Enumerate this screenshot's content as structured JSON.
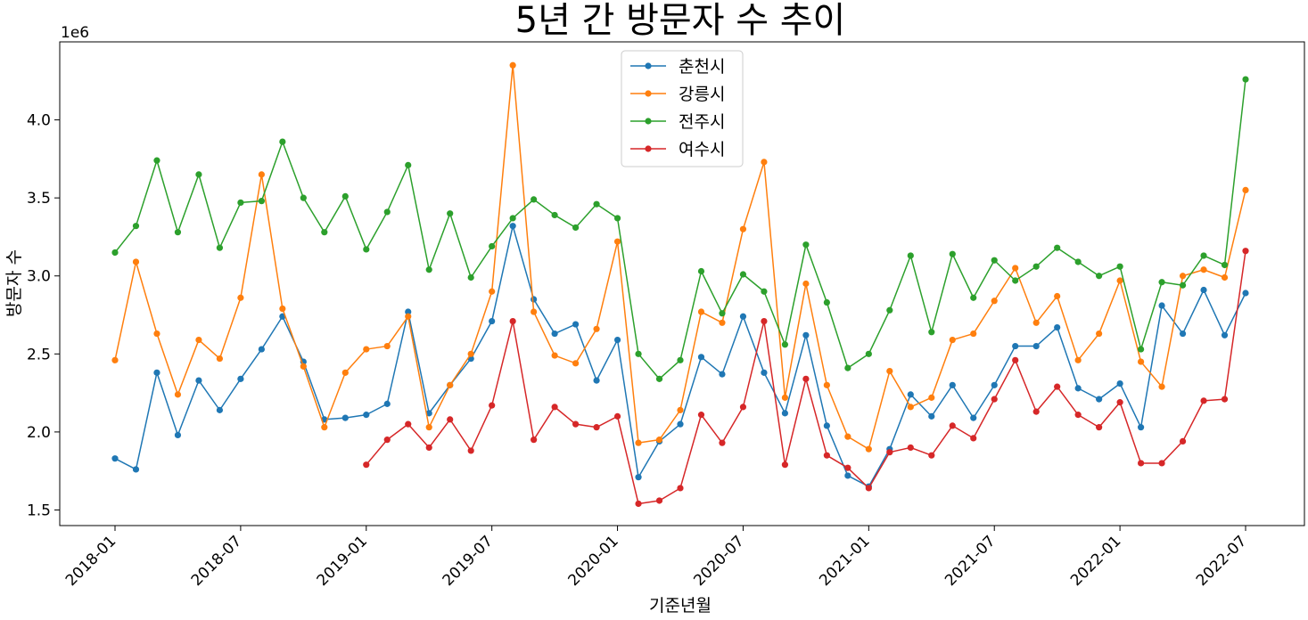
{
  "chart_data": {
    "type": "line",
    "title": "5년 간 방문자 수 추이",
    "xlabel": "기준년월",
    "ylabel": "방문자 수",
    "y_offset_text": "1e6",
    "x": [
      "2018-01",
      "2018-02",
      "2018-03",
      "2018-04",
      "2018-05",
      "2018-06",
      "2018-07",
      "2018-08",
      "2018-09",
      "2018-10",
      "2018-11",
      "2018-12",
      "2019-01",
      "2019-02",
      "2019-03",
      "2019-04",
      "2019-05",
      "2019-06",
      "2019-07",
      "2019-08",
      "2019-09",
      "2019-10",
      "2019-11",
      "2019-12",
      "2020-01",
      "2020-02",
      "2020-03",
      "2020-04",
      "2020-05",
      "2020-06",
      "2020-07",
      "2020-08",
      "2020-09",
      "2020-10",
      "2020-11",
      "2020-12",
      "2021-01",
      "2021-02",
      "2021-03",
      "2021-04",
      "2021-05",
      "2021-06",
      "2021-07",
      "2021-08",
      "2021-09",
      "2021-10",
      "2021-11",
      "2021-12",
      "2022-01",
      "2022-02",
      "2022-03",
      "2022-04",
      "2022-05",
      "2022-06",
      "2022-07"
    ],
    "x_ticks": [
      "2018-01",
      "2018-07",
      "2019-01",
      "2019-07",
      "2020-01",
      "2020-07",
      "2021-01",
      "2021-07",
      "2022-01",
      "2022-07"
    ],
    "y_ticks": [
      "1.5",
      "2.0",
      "2.5",
      "3.0",
      "3.5",
      "4.0"
    ],
    "y_tick_values": [
      1.5,
      2.0,
      2.5,
      3.0,
      3.5,
      4.0
    ],
    "ylim": [
      1.4,
      4.5
    ],
    "legend_position": "top-center",
    "grid": false,
    "series": [
      {
        "name": "춘천시",
        "color": "#1f77b4",
        "values": [
          1.83,
          1.76,
          2.38,
          1.98,
          2.33,
          2.14,
          2.34,
          2.53,
          2.74,
          2.45,
          2.08,
          2.09,
          2.11,
          2.18,
          2.77,
          2.12,
          2.3,
          2.47,
          2.71,
          3.32,
          2.85,
          2.63,
          2.69,
          2.33,
          2.59,
          1.71,
          1.94,
          2.05,
          2.48,
          2.37,
          2.74,
          2.38,
          2.12,
          2.62,
          2.04,
          1.72,
          1.65,
          1.89,
          2.24,
          2.1,
          2.3,
          2.09,
          2.3,
          2.55,
          2.55,
          2.67,
          2.28,
          2.21,
          2.31,
          2.03,
          2.81,
          2.63,
          2.91,
          2.62,
          2.89
        ]
      },
      {
        "name": "강릉시",
        "color": "#ff7f0e",
        "values": [
          2.46,
          3.09,
          2.63,
          2.24,
          2.59,
          2.47,
          2.86,
          3.65,
          2.79,
          2.42,
          2.03,
          2.38,
          2.53,
          2.55,
          2.74,
          2.03,
          2.3,
          2.5,
          2.9,
          4.35,
          2.77,
          2.49,
          2.44,
          2.66,
          3.22,
          1.93,
          1.95,
          2.14,
          2.77,
          2.7,
          3.3,
          3.73,
          2.22,
          2.95,
          2.3,
          1.97,
          1.89,
          2.39,
          2.16,
          2.22,
          2.59,
          2.63,
          2.84,
          3.05,
          2.7,
          2.87,
          2.46,
          2.63,
          2.97,
          2.45,
          2.29,
          3.0,
          3.04,
          2.99,
          3.55
        ]
      },
      {
        "name": "전주시",
        "color": "#2ca02c",
        "values": [
          3.15,
          3.32,
          3.74,
          3.28,
          3.65,
          3.18,
          3.47,
          3.48,
          3.86,
          3.5,
          3.28,
          3.51,
          3.17,
          3.41,
          3.71,
          3.04,
          3.4,
          2.99,
          3.19,
          3.37,
          3.49,
          3.39,
          3.31,
          3.46,
          3.37,
          2.5,
          2.34,
          2.46,
          3.03,
          2.76,
          3.01,
          2.9,
          2.56,
          3.2,
          2.83,
          2.41,
          2.5,
          2.78,
          3.13,
          2.64,
          3.14,
          2.86,
          3.1,
          2.97,
          3.06,
          3.18,
          3.09,
          3.0,
          3.06,
          2.53,
          2.96,
          2.94,
          3.13,
          3.07,
          4.26
        ]
      },
      {
        "name": "여수시",
        "color": "#d62728",
        "values": [
          null,
          null,
          null,
          null,
          null,
          null,
          null,
          null,
          null,
          null,
          null,
          null,
          1.79,
          1.95,
          2.05,
          1.9,
          2.08,
          1.88,
          2.17,
          2.71,
          1.95,
          2.16,
          2.05,
          2.03,
          2.1,
          1.54,
          1.56,
          1.64,
          2.11,
          1.93,
          2.16,
          2.71,
          1.79,
          2.34,
          1.85,
          1.77,
          1.64,
          1.87,
          1.9,
          1.85,
          2.04,
          1.96,
          2.21,
          2.46,
          2.13,
          2.29,
          2.11,
          2.03,
          2.19,
          1.8,
          1.8,
          1.94,
          2.2,
          2.21,
          3.16
        ]
      }
    ]
  }
}
